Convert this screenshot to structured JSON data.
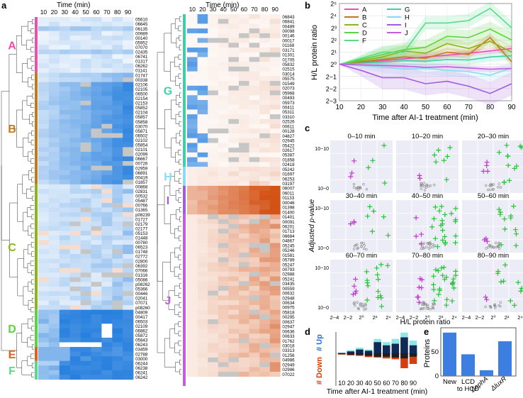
{
  "panel_letters": [
    "a",
    "b",
    "c",
    "d",
    "e"
  ],
  "colors": {
    "blue": "#1a78dc",
    "orange": "#d24e10",
    "grey": "#c6c6c6",
    "white": "#ffffff",
    "groups": {
      "A": "#ec4fb0",
      "B": "#c47a1c",
      "C": "#8ab61c",
      "D": "#5ad53c",
      "E": "#e75e16",
      "F": "#56dc88",
      "G": "#3cd0a8",
      "H": "#8adcf0",
      "I": "#a05cdc",
      "J": "#c45cdc"
    },
    "up": "#8fe6e6",
    "navy": "#0f2a57",
    "down_dark": "#1e1e1e",
    "down_red": "#d63e10",
    "magenta_mark": "#c03ad0",
    "green_mark": "#26c43a",
    "grey_mark": "#8a8a8a",
    "bar_fill": "#3d7fe0",
    "panel_bg": "#ececf6"
  },
  "heatmap": {
    "time_label": "Time (min)",
    "time_points": [
      "10",
      "20",
      "30",
      "40",
      "50",
      "60",
      "70",
      "80",
      "90"
    ],
    "left_group_labels": [
      "A",
      "B",
      "C",
      "D",
      "E",
      "F"
    ],
    "right_group_labels": [
      "G",
      "H",
      "I",
      "J"
    ],
    "left_ids": [
      "05610",
      "06645",
      "06135",
      "00989",
      "00140",
      "05952",
      "07070",
      "02435",
      "06741",
      "01317",
      "06262",
      "01141",
      "01747",
      "00338",
      "02106",
      "02105",
      "06500",
      "02154",
      "02153",
      "05852",
      "02104",
      "05857",
      "05858",
      "03070",
      "05871",
      "06502",
      "02102",
      "05854",
      "02101",
      "02099",
      "06667",
      "00726",
      "02959",
      "06891",
      "00419",
      "01857",
      "00868",
      "02831",
      "00532",
      "05487",
      "00766",
      "01365",
      "p08239",
      "01727",
      "02179",
      "02177",
      "05153",
      "01448",
      "00780",
      "06523",
      "01748",
      "02772",
      "02800",
      "06392",
      "07066",
      "01316",
      "05086",
      "p08262",
      "05366",
      "00446",
      "02041",
      "07071",
      "p08260",
      "04809",
      "00417",
      "06503",
      "02109",
      "06862",
      "05872",
      "05843",
      "06243",
      "03459",
      "02788",
      "03000",
      "06244",
      "06238",
      "06241",
      "06242"
    ],
    "right_ids": [
      "06843",
      "06841",
      "00489",
      "00098",
      "00146",
      "00017",
      "01168",
      "03171",
      "01301",
      "01705",
      "05832",
      "02515",
      "03014",
      "05575",
      "01549",
      "02073",
      "05968",
      "00493",
      "05973",
      "00411",
      "05311",
      "03310",
      "02526",
      "00611",
      "00128",
      "04827",
      "02945",
      "05422",
      "02617",
      "05387",
      "01858",
      "02418",
      "05242",
      "01697",
      "06253",
      "03197",
      "06007",
      "06011",
      "01133",
      "00046",
      "01398",
      "01400",
      "01401",
      "00091",
      "06201",
      "01713",
      "06684",
      "04867",
      "05245",
      "05246",
      "01581",
      "05789",
      "05247",
      "00793",
      "02988",
      "05241",
      "03435",
      "00559",
      "00632",
      "02948",
      "00634",
      "00975",
      "05818",
      "00295",
      "00637",
      "02947",
      "00636",
      "00633",
      "01762",
      "03018",
      "03313",
      "01256",
      "04986",
      "02949",
      "02986",
      "07022"
    ]
  },
  "chart_data": [
    {
      "panel": "b",
      "type": "line",
      "xlabel": "Time after AI-1 treatment (min)",
      "ylabel": "H/L protein ratio",
      "x": [
        10,
        20,
        30,
        40,
        50,
        60,
        70,
        80,
        90
      ],
      "x_ticks": [
        "10",
        "20",
        "30",
        "40",
        "50",
        "60",
        "70",
        "80",
        "90"
      ],
      "y_ticks_log2": [
        -3,
        -2,
        -1,
        0,
        1,
        2,
        3,
        4,
        5
      ],
      "y_tick_labels": [
        "2−3",
        "2−2",
        "2−1",
        "2⁰",
        "2¹",
        "2²",
        "2³",
        "2⁴",
        "2⁵"
      ],
      "ylim_log2": [
        -3,
        5
      ],
      "series": [
        {
          "name": "A",
          "color": "#ec4fb0",
          "log2": [
            0,
            0.15,
            0.3,
            0.45,
            0.6,
            0.75,
            0.9,
            1.1,
            1.3
          ]
        },
        {
          "name": "B",
          "color": "#c47a1c",
          "log2": [
            0,
            0.2,
            0.4,
            0.6,
            0.5,
            1.0,
            0.8,
            2.2,
            0.2
          ]
        },
        {
          "name": "C",
          "color": "#8ab61c",
          "log2": [
            0,
            0.3,
            0.6,
            1.1,
            0.9,
            1.7,
            1.3,
            1.9,
            1.0
          ]
        },
        {
          "name": "D",
          "color": "#5ad53c",
          "log2": [
            0,
            0.4,
            0.8,
            1.2,
            1.4,
            2.3,
            2.2,
            2.9,
            2.0
          ]
        },
        {
          "name": "F",
          "color": "#56dc88",
          "log2": [
            0,
            0.5,
            1.0,
            1.0,
            3.4,
            3.4,
            3.6,
            4.6,
            3.0
          ]
        },
        {
          "name": "G",
          "color": "#3cd0a8",
          "log2": [
            0,
            0.1,
            0.2,
            0.3,
            0.25,
            0.4,
            0.35,
            0.6,
            0.7
          ]
        },
        {
          "name": "H",
          "color": "#8adcf0",
          "log2": [
            0,
            -0.1,
            -0.2,
            -0.4,
            -0.3,
            -0.5,
            -0.6,
            -0.9,
            -0.3
          ]
        },
        {
          "name": "I",
          "color": "#a05cdc",
          "log2": [
            0,
            -0.5,
            -1.1,
            -1.1,
            -1.6,
            -1.4,
            -1.8,
            -2.4,
            -1.6
          ]
        },
        {
          "name": "J",
          "color": "#c45cdc",
          "log2": [
            0,
            -0.05,
            -0.1,
            -0.15,
            -0.25,
            -0.2,
            -0.3,
            -0.4,
            -0.35
          ]
        }
      ]
    },
    {
      "panel": "c",
      "type": "scatter",
      "xlabel": "H/L protein ratio",
      "ylabel": "Adjusted p-value",
      "x_tick_labels": [
        "2−4",
        "2−2",
        "2⁰",
        "2²",
        "2⁴"
      ],
      "y_tick_labels": [
        "10−0",
        "10−10"
      ],
      "subplots": [
        "0–10 min",
        "10–20 min",
        "20–30 min",
        "30–40 min",
        "40–50 min",
        "50–60 min",
        "60–70 min",
        "70–80 min",
        "80–90 min"
      ],
      "significant_up_counts": [
        4,
        7,
        12,
        6,
        22,
        12,
        15,
        24,
        10
      ],
      "significant_down_counts": [
        3,
        2,
        4,
        3,
        4,
        3,
        5,
        7,
        2
      ],
      "nonsignificant_counts": [
        12,
        16,
        14,
        14,
        18,
        16,
        16,
        24,
        12
      ]
    },
    {
      "panel": "d",
      "type": "bar",
      "xlabel": "Time after AI-1 treatment (min)",
      "up_label": "# Up",
      "down_label": "# Down",
      "categories": [
        "10",
        "20",
        "30",
        "40",
        "50",
        "60",
        "70",
        "80",
        "90"
      ],
      "series": [
        {
          "name": "Up (total)",
          "color": "#8fe6e6",
          "values": [
            2,
            10,
            18,
            12,
            45,
            35,
            45,
            65,
            40
          ]
        },
        {
          "name": "Up (persistent)",
          "color": "#0f2a57",
          "values": [
            1,
            6,
            12,
            8,
            35,
            25,
            30,
            50,
            25
          ]
        },
        {
          "name": "Down (persistent)",
          "color": "#1e1e1e",
          "values": [
            -2,
            -3,
            -4,
            -6,
            -8,
            -8,
            -10,
            -12,
            -8
          ]
        },
        {
          "name": "Down (total)",
          "color": "#d63e10",
          "values": [
            -3,
            -5,
            -6,
            -9,
            -10,
            -12,
            -14,
            -35,
            -25
          ]
        }
      ]
    },
    {
      "panel": "e",
      "type": "bar",
      "ylabel": "Proteins",
      "categories": [
        "New",
        "LCD to HCD",
        "ΔaphA",
        "ΔluxR"
      ],
      "values": [
        90,
        45,
        12,
        72
      ],
      "ylim": [
        0,
        100
      ],
      "y_ticks": [
        "0",
        "50"
      ]
    }
  ]
}
